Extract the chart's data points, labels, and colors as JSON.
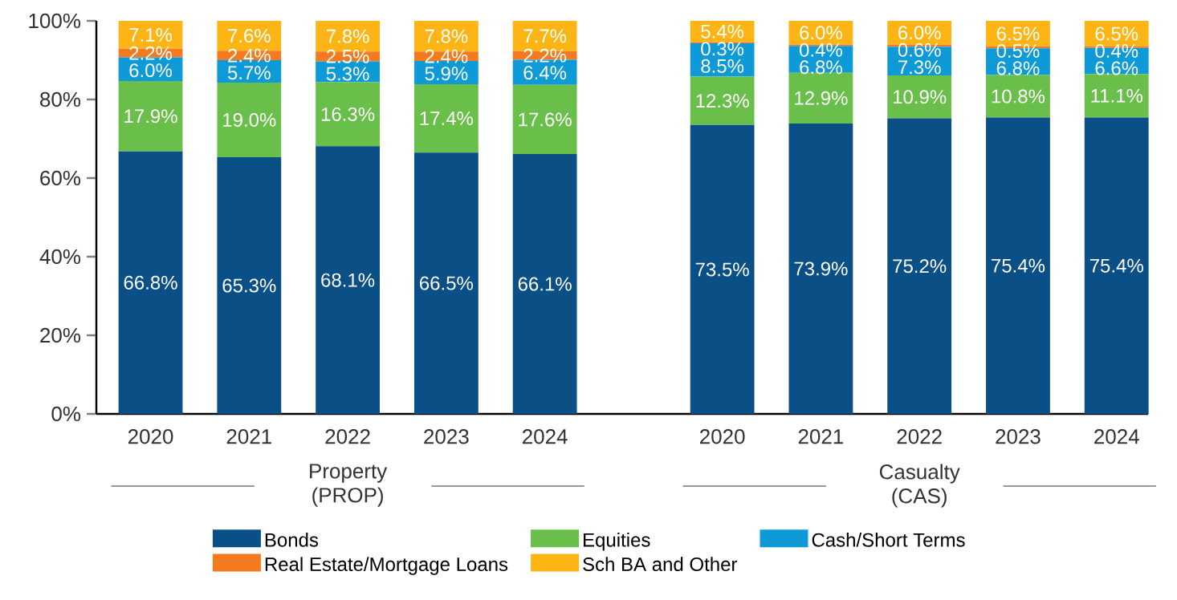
{
  "chart_data": {
    "type": "bar",
    "stacked": true,
    "legend": "bottom",
    "categories": [
      "2020",
      "2021",
      "2022",
      "2023",
      "2024",
      "2020",
      "2021",
      "2022",
      "2023",
      "2024"
    ],
    "annotations": [
      "Property (PROP)",
      "Casualty (CAS)"
    ],
    "ylim": [
      0,
      100
    ],
    "yticks": [
      {
        "value": 0,
        "label": "0%"
      },
      {
        "value": 20,
        "label": "20%"
      },
      {
        "value": 40,
        "label": "40%"
      },
      {
        "value": 60,
        "label": "60%"
      },
      {
        "value": 80,
        "label": "80%"
      },
      {
        "value": 100,
        "label": "100%"
      }
    ],
    "series": [
      {
        "name": "Bonds",
        "color": "#0b4f87",
        "values": [
          66.8,
          65.3,
          68.1,
          66.5,
          66.1,
          73.5,
          73.9,
          75.2,
          75.4,
          75.4
        ],
        "value_labels": [
          "66.8%",
          "65.3%",
          "68.1%",
          "66.5%",
          "66.1%",
          "73.5%",
          "73.9%",
          "75.2%",
          "75.4%",
          "75.4%"
        ]
      },
      {
        "name": "Equities",
        "color": "#6abf4b",
        "values": [
          17.9,
          19.0,
          16.3,
          17.4,
          17.6,
          12.3,
          12.9,
          10.9,
          10.8,
          11.1
        ],
        "value_labels": [
          "17.9%",
          "19.0%",
          "16.3%",
          "17.4%",
          "17.6%",
          "12.3%",
          "12.9%",
          "10.9%",
          "10.8%",
          "11.1%"
        ]
      },
      {
        "name": "Cash/Short Terms",
        "color": "#0e9ad7",
        "values": [
          6.0,
          5.7,
          5.3,
          5.9,
          6.4,
          8.5,
          6.8,
          7.3,
          6.8,
          6.6
        ],
        "value_labels": [
          "6.0%",
          "5.7%",
          "5.3%",
          "5.9%",
          "6.4%",
          "8.5%",
          "6.8%",
          "7.3%",
          "6.8%",
          "6.6%"
        ]
      },
      {
        "name": "Real Estate/Mortgage Loans",
        "color": "#f47a20",
        "values": [
          2.2,
          2.4,
          2.5,
          2.4,
          2.2,
          0.3,
          0.4,
          0.6,
          0.5,
          0.4
        ],
        "value_labels": [
          "2.2%",
          "2.4%",
          "2.5%",
          "2.4%",
          "2.2%",
          "0.3%",
          "0.4%",
          "0.6%",
          "0.5%",
          "0.4%"
        ]
      },
      {
        "name": "Sch BA and Other",
        "color": "#fdb515",
        "values": [
          7.1,
          7.6,
          7.8,
          7.8,
          7.7,
          5.4,
          6.0,
          6.0,
          6.5,
          6.5
        ],
        "value_labels": [
          "7.1%",
          "7.6%",
          "7.8%",
          "7.8%",
          "7.7%",
          "5.4%",
          "6.0%",
          "6.0%",
          "6.5%",
          "6.5%"
        ]
      }
    ]
  }
}
